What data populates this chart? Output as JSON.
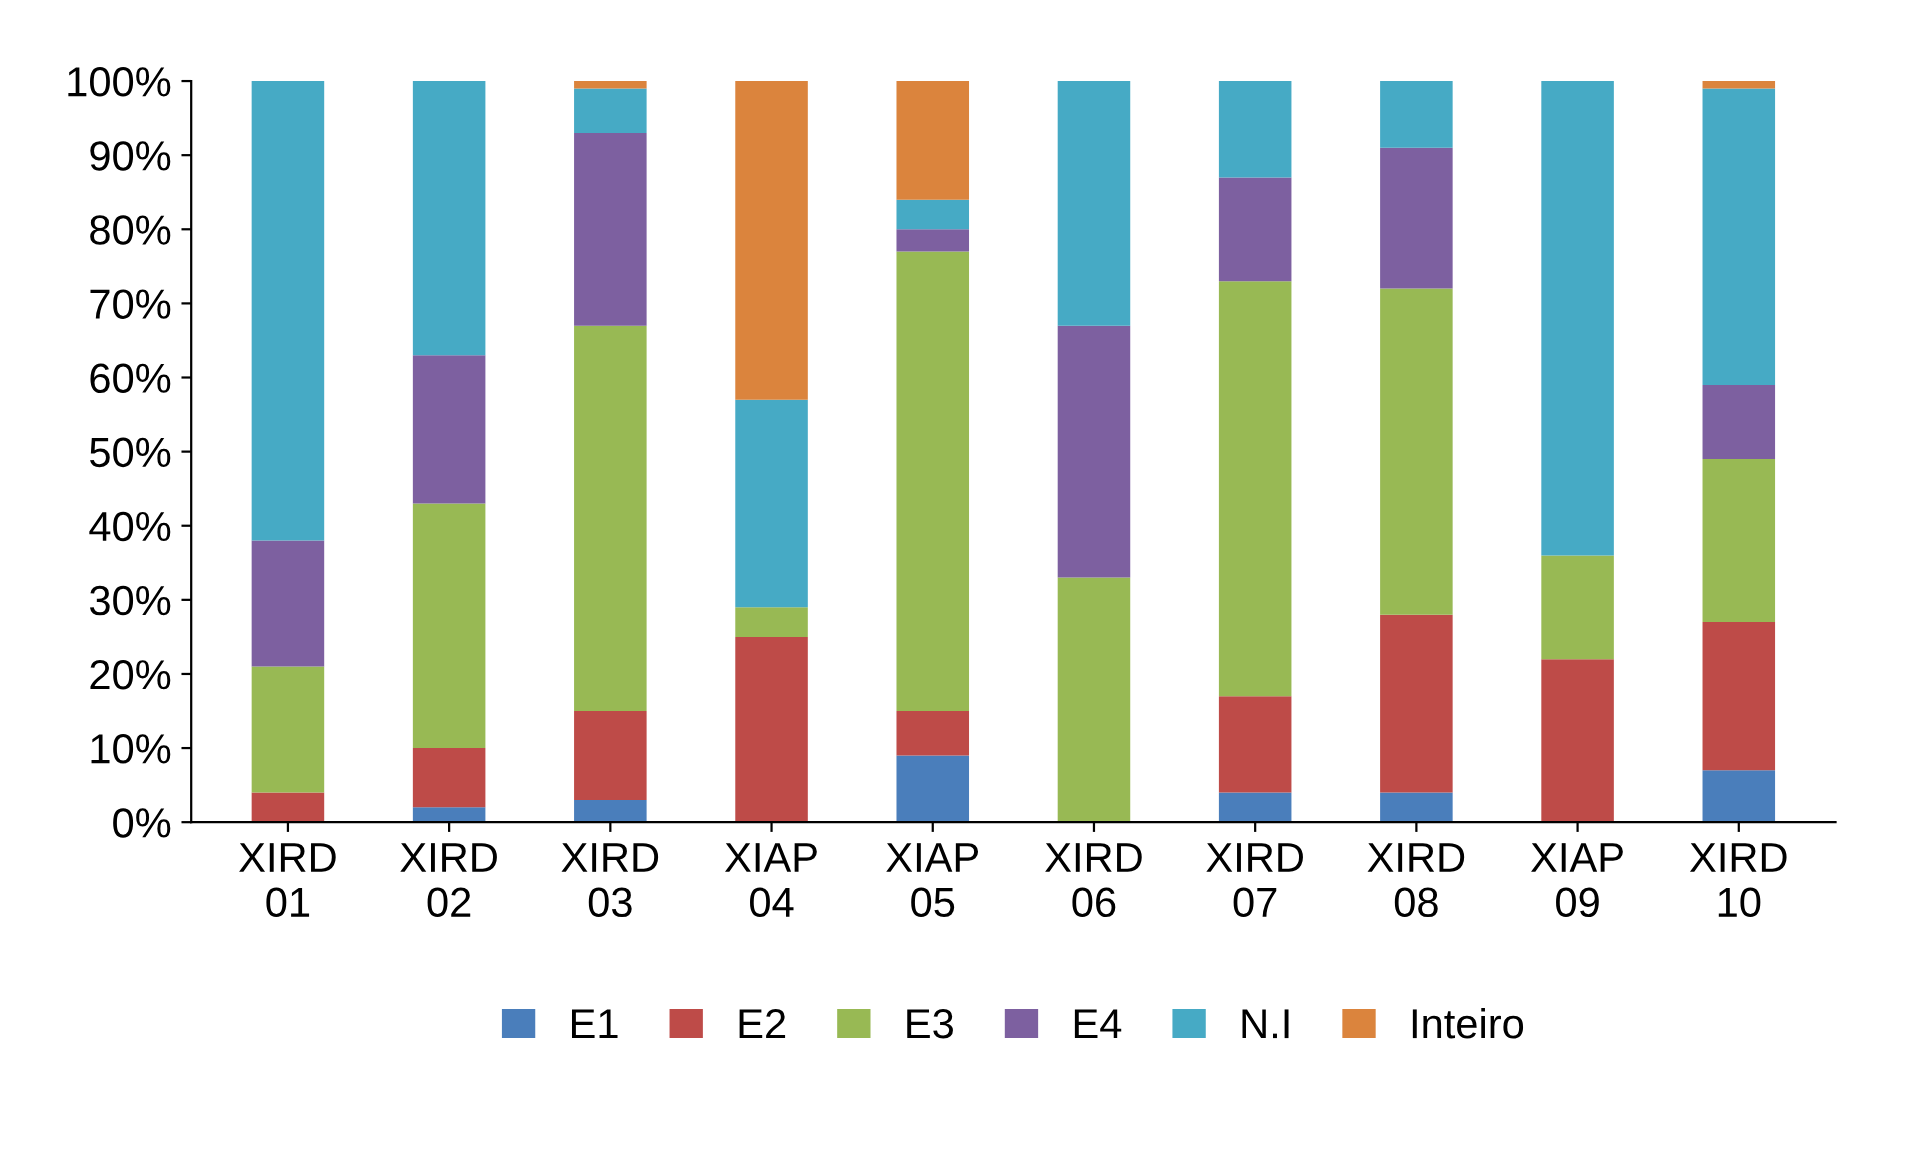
{
  "chart_data": {
    "type": "bar",
    "stacked": true,
    "categories": [
      "XIRD\n01",
      "XIRD\n02",
      "XIRD\n03",
      "XIAP\n04",
      "XIAP\n05",
      "XIRD\n06",
      "XIRD\n07",
      "XIRD\n08",
      "XIAP\n09",
      "XIRD\n10"
    ],
    "series": [
      {
        "name": "E1",
        "color": "#4a7ebb",
        "values": [
          0,
          2,
          3,
          0,
          9,
          0,
          4,
          4,
          0,
          7
        ]
      },
      {
        "name": "E2",
        "color": "#be4b48",
        "values": [
          4,
          8,
          12,
          25,
          6,
          0,
          13,
          24,
          22,
          20
        ]
      },
      {
        "name": "E3",
        "color": "#98b954",
        "values": [
          17,
          33,
          52,
          4,
          62,
          33,
          56,
          44,
          14,
          22
        ]
      },
      {
        "name": "E4",
        "color": "#7d60a0",
        "values": [
          17,
          20,
          26,
          0,
          3,
          34,
          14,
          19,
          0,
          10
        ]
      },
      {
        "name": "N.I",
        "color": "#46aac5",
        "values": [
          62,
          37,
          6,
          28,
          4,
          33,
          13,
          9,
          64,
          40
        ]
      },
      {
        "name": "Inteiro",
        "color": "#db843d",
        "values": [
          0,
          0,
          1,
          43,
          16,
          0,
          0,
          0,
          0,
          1
        ]
      }
    ],
    "ylim": [
      0,
      100
    ],
    "yticks": [
      {
        "value": 0,
        "label": "0%"
      },
      {
        "value": 10,
        "label": "10%"
      },
      {
        "value": 20,
        "label": "20%"
      },
      {
        "value": 30,
        "label": "30%"
      },
      {
        "value": 40,
        "label": "40%"
      },
      {
        "value": 50,
        "label": "50%"
      },
      {
        "value": 60,
        "label": "60%"
      },
      {
        "value": 70,
        "label": "70%"
      },
      {
        "value": 80,
        "label": "80%"
      },
      {
        "value": 90,
        "label": "90%"
      },
      {
        "value": 100,
        "label": "100%"
      }
    ],
    "grid": false,
    "legend": "bottom"
  }
}
